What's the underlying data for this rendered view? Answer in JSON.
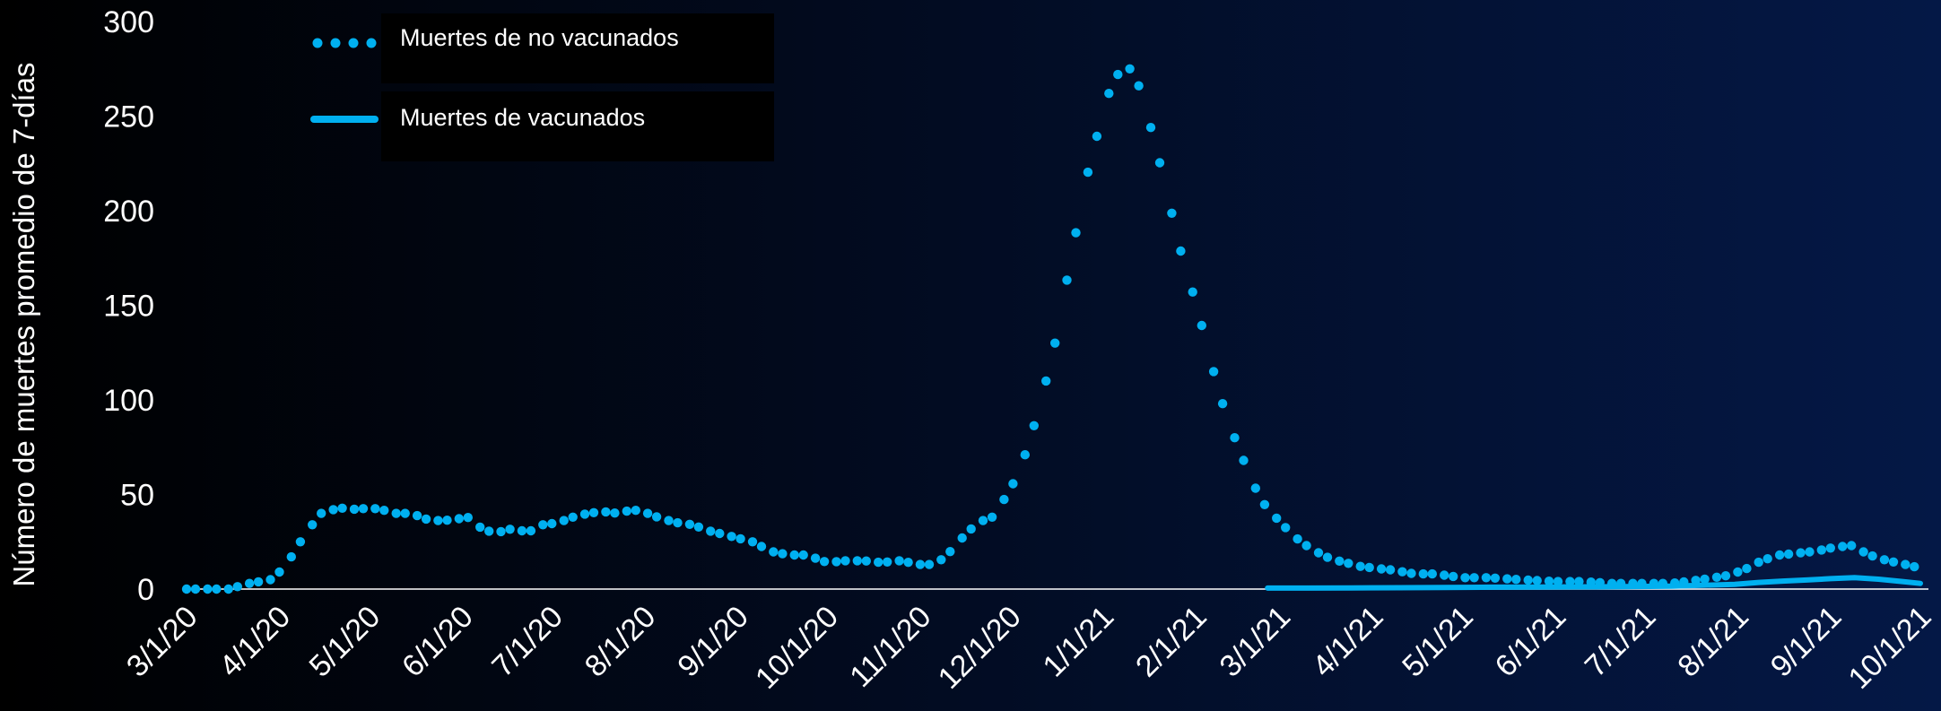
{
  "chart_data": {
    "type": "line",
    "title": "",
    "xlabel": "",
    "ylabel": "Número de muertes promedio de 7-días",
    "ylim": [
      0,
      300
    ],
    "yticks": [
      0,
      50,
      100,
      150,
      200,
      250,
      300
    ],
    "xlim": [
      "2020-03-01",
      "2021-10-01"
    ],
    "xticks": [
      "3/1/20",
      "4/1/20",
      "5/1/20",
      "6/1/20",
      "7/1/20",
      "8/1/20",
      "9/1/20",
      "10/1/20",
      "11/1/20",
      "12/1/20",
      "1/1/21",
      "2/1/21",
      "3/1/21",
      "4/1/21",
      "5/1/21",
      "6/1/21",
      "7/1/21",
      "8/1/21",
      "9/1/21",
      "10/1/21"
    ],
    "grid": false,
    "legend": "top-left",
    "series": [
      {
        "name": "Muertes de no vacunados",
        "style": "dotted",
        "color": "#00B0F0",
        "points": [
          [
            "2020-03-01",
            0
          ],
          [
            "2020-03-08",
            0
          ],
          [
            "2020-03-15",
            0
          ],
          [
            "2020-03-22",
            3
          ],
          [
            "2020-03-29",
            5
          ],
          [
            "2020-04-01",
            9
          ],
          [
            "2020-04-05",
            17
          ],
          [
            "2020-04-08",
            25
          ],
          [
            "2020-04-12",
            34
          ],
          [
            "2020-04-15",
            40
          ],
          [
            "2020-04-19",
            42
          ],
          [
            "2020-04-23",
            43
          ],
          [
            "2020-04-27",
            42
          ],
          [
            "2020-05-01",
            43
          ],
          [
            "2020-05-05",
            42
          ],
          [
            "2020-05-10",
            40
          ],
          [
            "2020-05-15",
            40
          ],
          [
            "2020-05-20",
            37
          ],
          [
            "2020-05-25",
            36
          ],
          [
            "2020-05-30",
            37
          ],
          [
            "2020-06-04",
            38
          ],
          [
            "2020-06-08",
            31
          ],
          [
            "2020-06-13",
            30
          ],
          [
            "2020-06-18",
            32
          ],
          [
            "2020-06-23",
            30
          ],
          [
            "2020-06-28",
            34
          ],
          [
            "2020-07-03",
            35
          ],
          [
            "2020-07-08",
            38
          ],
          [
            "2020-07-13",
            40
          ],
          [
            "2020-07-18",
            41
          ],
          [
            "2020-07-23",
            40
          ],
          [
            "2020-07-28",
            42
          ],
          [
            "2020-08-02",
            40
          ],
          [
            "2020-08-07",
            37
          ],
          [
            "2020-08-12",
            35
          ],
          [
            "2020-08-17",
            34
          ],
          [
            "2020-08-22",
            31
          ],
          [
            "2020-08-27",
            29
          ],
          [
            "2020-09-01",
            27
          ],
          [
            "2020-09-06",
            25
          ],
          [
            "2020-09-12",
            20
          ],
          [
            "2020-09-18",
            18
          ],
          [
            "2020-09-24",
            18
          ],
          [
            "2020-10-01",
            14
          ],
          [
            "2020-10-07",
            15
          ],
          [
            "2020-10-13",
            15
          ],
          [
            "2020-10-19",
            14
          ],
          [
            "2020-10-25",
            15
          ],
          [
            "2020-11-01",
            13
          ],
          [
            "2020-11-06",
            13
          ],
          [
            "2020-11-10",
            18
          ],
          [
            "2020-11-15",
            27
          ],
          [
            "2020-11-20",
            35
          ],
          [
            "2020-11-25",
            38
          ],
          [
            "2020-12-01",
            52
          ],
          [
            "2020-12-04",
            63
          ],
          [
            "2020-12-07",
            75
          ],
          [
            "2020-12-10",
            92
          ],
          [
            "2020-12-13",
            110
          ],
          [
            "2020-12-16",
            130
          ],
          [
            "2020-12-19",
            155
          ],
          [
            "2020-12-22",
            180
          ],
          [
            "2020-12-25",
            205
          ],
          [
            "2020-12-28",
            228
          ],
          [
            "2020-12-31",
            245
          ],
          [
            "2021-01-03",
            262
          ],
          [
            "2021-01-06",
            272
          ],
          [
            "2021-01-08",
            276
          ],
          [
            "2021-01-10",
            275
          ],
          [
            "2021-01-12",
            270
          ],
          [
            "2021-01-14",
            262
          ],
          [
            "2021-01-16",
            250
          ],
          [
            "2021-01-19",
            232
          ],
          [
            "2021-01-22",
            212
          ],
          [
            "2021-01-25",
            192
          ],
          [
            "2021-01-28",
            172
          ],
          [
            "2021-02-01",
            152
          ],
          [
            "2021-02-04",
            133
          ],
          [
            "2021-02-07",
            115
          ],
          [
            "2021-02-10",
            98
          ],
          [
            "2021-02-13",
            84
          ],
          [
            "2021-02-16",
            72
          ],
          [
            "2021-02-19",
            60
          ],
          [
            "2021-02-22",
            50
          ],
          [
            "2021-02-25",
            42
          ],
          [
            "2021-03-01",
            36
          ],
          [
            "2021-03-05",
            29
          ],
          [
            "2021-03-09",
            24
          ],
          [
            "2021-03-13",
            20
          ],
          [
            "2021-03-18",
            16
          ],
          [
            "2021-03-23",
            14
          ],
          [
            "2021-03-28",
            12
          ],
          [
            "2021-04-02",
            11
          ],
          [
            "2021-04-08",
            10
          ],
          [
            "2021-04-15",
            8
          ],
          [
            "2021-04-22",
            8
          ],
          [
            "2021-05-01",
            6
          ],
          [
            "2021-05-10",
            6
          ],
          [
            "2021-05-20",
            5
          ],
          [
            "2021-06-01",
            4
          ],
          [
            "2021-06-10",
            4
          ],
          [
            "2021-06-20",
            3
          ],
          [
            "2021-07-01",
            3
          ],
          [
            "2021-07-10",
            3
          ],
          [
            "2021-07-20",
            5
          ],
          [
            "2021-07-28",
            7
          ],
          [
            "2021-08-03",
            10
          ],
          [
            "2021-08-09",
            15
          ],
          [
            "2021-08-15",
            18
          ],
          [
            "2021-08-21",
            19
          ],
          [
            "2021-08-27",
            20
          ],
          [
            "2021-09-02",
            22
          ],
          [
            "2021-09-08",
            23
          ],
          [
            "2021-09-14",
            18
          ],
          [
            "2021-09-20",
            15
          ],
          [
            "2021-09-26",
            13
          ],
          [
            "2021-10-01",
            11
          ]
        ]
      },
      {
        "name": "Muertes de vacunados",
        "style": "solid",
        "color": "#00B0F0",
        "points": [
          [
            "2021-02-25",
            0.5
          ],
          [
            "2021-03-10",
            0.5
          ],
          [
            "2021-03-25",
            0.6
          ],
          [
            "2021-04-10",
            0.7
          ],
          [
            "2021-04-25",
            0.8
          ],
          [
            "2021-05-10",
            1.0
          ],
          [
            "2021-05-25",
            1.1
          ],
          [
            "2021-06-10",
            1.2
          ],
          [
            "2021-06-25",
            1.3
          ],
          [
            "2021-07-10",
            1.5
          ],
          [
            "2021-07-20",
            2.0
          ],
          [
            "2021-07-31",
            2.5
          ],
          [
            "2021-08-08",
            3.5
          ],
          [
            "2021-08-16",
            4.2
          ],
          [
            "2021-08-24",
            4.8
          ],
          [
            "2021-09-01",
            5.5
          ],
          [
            "2021-09-09",
            6.0
          ],
          [
            "2021-09-17",
            5.2
          ],
          [
            "2021-09-25",
            4.0
          ],
          [
            "2021-10-01",
            3.0
          ]
        ]
      }
    ]
  }
}
